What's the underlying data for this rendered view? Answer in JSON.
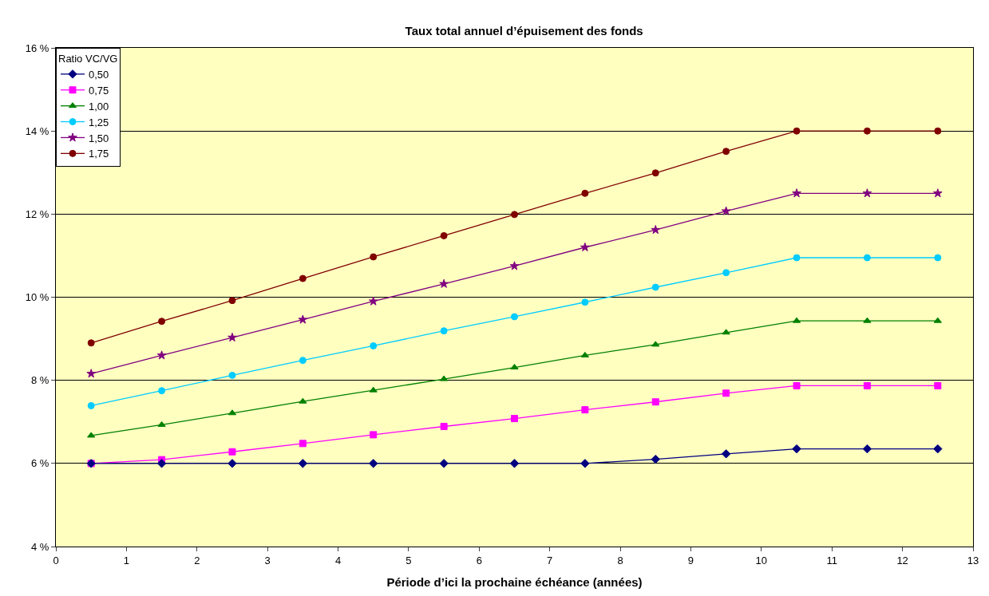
{
  "chart_data": {
    "type": "line",
    "title": "Taux total annuel d’épuisement des fonds",
    "xlabel": "Période d’ici la prochaine échéance (années)",
    "legend_title": "Ratio VC/VG",
    "x": [
      0.5,
      1.5,
      2.5,
      3.5,
      4.5,
      5.5,
      6.5,
      7.5,
      8.5,
      9.5,
      10.5,
      11.5,
      12.5
    ],
    "series": [
      {
        "name": "0,50",
        "color": "#000080",
        "marker": "diamond",
        "values": [
          6.0,
          6.0,
          6.0,
          6.0,
          6.0,
          6.0,
          6.0,
          6.0,
          6.1,
          6.23,
          6.35,
          6.35,
          6.35
        ]
      },
      {
        "name": "0,75",
        "color": "#ff00ff",
        "marker": "square",
        "values": [
          6.0,
          6.09,
          6.28,
          6.48,
          6.69,
          6.89,
          7.08,
          7.29,
          7.48,
          7.69,
          7.87,
          7.87,
          7.87
        ]
      },
      {
        "name": "1,00",
        "color": "#008000",
        "marker": "triangle",
        "values": [
          6.67,
          6.93,
          7.21,
          7.49,
          7.76,
          8.03,
          8.31,
          8.6,
          8.86,
          9.15,
          9.43,
          9.43,
          9.43
        ]
      },
      {
        "name": "1,25",
        "color": "#00ccff",
        "marker": "circle",
        "values": [
          7.39,
          7.75,
          8.12,
          8.48,
          8.83,
          9.19,
          9.53,
          9.88,
          10.24,
          10.59,
          10.95,
          10.95,
          10.95
        ]
      },
      {
        "name": "1,50",
        "color": "#800080",
        "marker": "star",
        "values": [
          8.16,
          8.6,
          9.03,
          9.46,
          9.9,
          10.32,
          10.75,
          11.2,
          11.62,
          12.07,
          12.5,
          12.5,
          12.5
        ]
      },
      {
        "name": "1,75",
        "color": "#800000",
        "marker": "circle",
        "values": [
          8.9,
          9.42,
          9.92,
          10.45,
          10.97,
          11.48,
          11.99,
          12.5,
          12.99,
          13.51,
          14.0,
          14.0,
          14.0
        ]
      }
    ],
    "xlim": [
      0,
      13
    ],
    "xticks": [
      0,
      1,
      2,
      3,
      4,
      5,
      6,
      7,
      8,
      9,
      10,
      11,
      12,
      13
    ],
    "ylim": [
      4,
      16
    ],
    "yticks": [
      {
        "value": 4,
        "label": "4 %"
      },
      {
        "value": 6,
        "label": "6 %"
      },
      {
        "value": 8,
        "label": "8 %"
      },
      {
        "value": 10,
        "label": "10 %"
      },
      {
        "value": 12,
        "label": "12 %"
      },
      {
        "value": 14,
        "label": "14 %"
      },
      {
        "value": 16,
        "label": "16 %"
      }
    ],
    "grid": "y",
    "legend": "top left",
    "line_style": "solid"
  }
}
